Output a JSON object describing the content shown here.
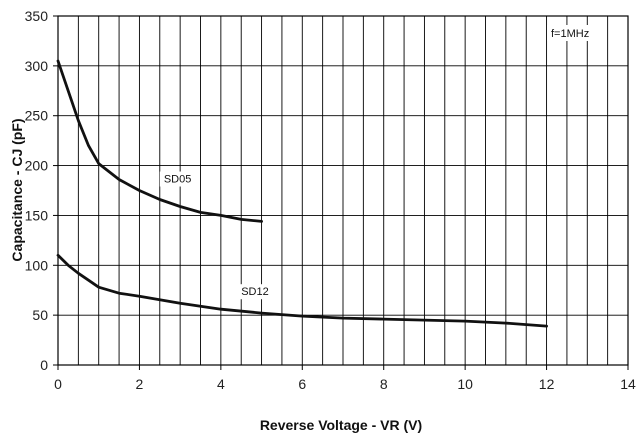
{
  "chart_data": {
    "type": "line",
    "xlabel": "Reverse Voltage - VR (V)",
    "ylabel": "Capacitance - CJ (pF)",
    "annotation": "f=1MHz",
    "xlim": [
      0,
      14
    ],
    "ylim": [
      0,
      350
    ],
    "xticks": [
      0,
      2,
      4,
      6,
      8,
      10,
      12,
      14
    ],
    "yticks": [
      0,
      50,
      100,
      150,
      200,
      250,
      300,
      350
    ],
    "grid": true,
    "series": [
      {
        "name": "SD05",
        "x": [
          0,
          0.25,
          0.5,
          0.75,
          1,
          1.5,
          2,
          2.5,
          3,
          3.5,
          4,
          4.5,
          5
        ],
        "y": [
          305,
          275,
          245,
          220,
          202,
          186,
          175,
          166,
          159,
          153,
          150,
          146,
          144
        ]
      },
      {
        "name": "SD12",
        "x": [
          0,
          0.25,
          0.5,
          0.75,
          1,
          1.5,
          2,
          3,
          4,
          5,
          6,
          7,
          8,
          9,
          10,
          11,
          12
        ],
        "y": [
          110,
          100,
          92,
          85,
          78,
          72,
          69,
          62,
          56,
          52,
          49,
          47,
          46,
          45,
          44,
          42,
          39
        ]
      }
    ],
    "series_label_positions": [
      {
        "name": "SD05",
        "at_x": 2.6,
        "at_y": 183
      },
      {
        "name": "SD12",
        "at_x": 4.5,
        "at_y": 70
      }
    ]
  },
  "labels": {
    "xlabel": "Reverse Voltage - VR (V)",
    "ylabel": "Capacitance - CJ (pF)",
    "annotation": "f=1MHz",
    "xtick_labels": [
      "0",
      "2",
      "4",
      "6",
      "8",
      "10",
      "12",
      "14"
    ],
    "ytick_labels": [
      "0",
      "50",
      "100",
      "150",
      "200",
      "250",
      "300",
      "350"
    ],
    "series_names": [
      "SD05",
      "SD12"
    ]
  }
}
